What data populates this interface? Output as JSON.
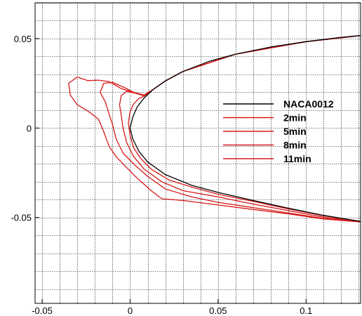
{
  "chart_data": {
    "type": "line",
    "title": "",
    "xlabel": "",
    "ylabel": "",
    "xlim": [
      -0.054,
      0.131
    ],
    "ylim": [
      -0.098,
      0.07
    ],
    "xticks": [
      -0.05,
      0,
      0.05,
      0.1
    ],
    "xtick_labels": [
      "-0.05",
      "0",
      "0.05",
      "0.1"
    ],
    "yticks": [
      -0.05,
      0,
      0.05
    ],
    "ytick_labels": [
      "-0.05",
      "0",
      "0.05"
    ],
    "grid": true,
    "grid_minor_x": 0.01,
    "grid_minor_y": 0.01,
    "legend_position": "center-right",
    "series": [
      {
        "name": "NACA0012",
        "color": "#000000",
        "points": [
          [
            0.131,
            0.0517
          ],
          [
            0.12,
            0.0507
          ],
          [
            0.1,
            0.0483
          ],
          [
            0.08,
            0.0453
          ],
          [
            0.06,
            0.0413
          ],
          [
            0.045,
            0.0373
          ],
          [
            0.03,
            0.0316
          ],
          [
            0.02,
            0.0263
          ],
          [
            0.013,
            0.0215
          ],
          [
            0.008,
            0.0168
          ],
          [
            0.004,
            0.0118
          ],
          [
            0.0015,
            0.006
          ],
          [
            0.0,
            0.0
          ],
          [
            0.0015,
            -0.006
          ],
          [
            0.005,
            -0.013
          ],
          [
            0.01,
            -0.019
          ],
          [
            0.02,
            -0.026
          ],
          [
            0.035,
            -0.032
          ],
          [
            0.05,
            -0.036
          ],
          [
            0.07,
            -0.0405
          ],
          [
            0.09,
            -0.0448
          ],
          [
            0.11,
            -0.0488
          ],
          [
            0.131,
            -0.0522
          ]
        ]
      },
      {
        "name": "2min",
        "color": "#d81818",
        "points": [
          [
            0.131,
            0.0517
          ],
          [
            0.1,
            0.0483
          ],
          [
            0.06,
            0.0413
          ],
          [
            0.03,
            0.0316
          ],
          [
            0.02,
            0.0263
          ],
          [
            0.013,
            0.0215
          ],
          [
            0.008,
            0.0178
          ],
          [
            0.005,
            0.0165
          ],
          [
            0.002,
            0.0135
          ],
          [
            0.0,
            0.009
          ],
          [
            -0.001,
            0.003
          ],
          [
            0.0,
            -0.004
          ],
          [
            0.002,
            -0.011
          ],
          [
            0.006,
            -0.017
          ],
          [
            0.012,
            -0.023
          ],
          [
            0.022,
            -0.029
          ],
          [
            0.035,
            -0.033
          ],
          [
            0.05,
            -0.037
          ],
          [
            0.07,
            -0.041
          ],
          [
            0.09,
            -0.0452
          ],
          [
            0.11,
            -0.049
          ],
          [
            0.131,
            -0.0522
          ]
        ]
      },
      {
        "name": "5min",
        "color": "#d81818",
        "points": [
          [
            0.131,
            0.0517
          ],
          [
            0.1,
            0.0483
          ],
          [
            0.06,
            0.0413
          ],
          [
            0.03,
            0.0316
          ],
          [
            0.02,
            0.0263
          ],
          [
            0.013,
            0.0215
          ],
          [
            0.008,
            0.018
          ],
          [
            0.003,
            0.0195
          ],
          [
            -0.002,
            0.0205
          ],
          [
            -0.005,
            0.0182
          ],
          [
            -0.006,
            0.013
          ],
          [
            -0.005,
            0.007
          ],
          [
            -0.004,
            0.0
          ],
          [
            -0.002,
            -0.008
          ],
          [
            0.002,
            -0.016
          ],
          [
            0.008,
            -0.023
          ],
          [
            0.018,
            -0.03
          ],
          [
            0.03,
            -0.035
          ],
          [
            0.05,
            -0.0385
          ],
          [
            0.07,
            -0.0425
          ],
          [
            0.09,
            -0.0462
          ],
          [
            0.11,
            -0.0498
          ],
          [
            0.131,
            -0.0525
          ]
        ]
      },
      {
        "name": "8min",
        "color": "#d81818",
        "points": [
          [
            0.131,
            0.0517
          ],
          [
            0.1,
            0.0483
          ],
          [
            0.06,
            0.0413
          ],
          [
            0.03,
            0.0316
          ],
          [
            0.02,
            0.0263
          ],
          [
            0.013,
            0.0215
          ],
          [
            0.008,
            0.0183
          ],
          [
            0.003,
            0.0195
          ],
          [
            -0.003,
            0.0225
          ],
          [
            -0.01,
            0.0255
          ],
          [
            -0.015,
            0.025
          ],
          [
            -0.017,
            0.02
          ],
          [
            -0.014,
            0.0145
          ],
          [
            -0.012,
            0.008
          ],
          [
            -0.01,
            0.002
          ],
          [
            -0.008,
            -0.006
          ],
          [
            -0.004,
            -0.014
          ],
          [
            0.003,
            -0.021
          ],
          [
            0.01,
            -0.027
          ],
          [
            0.02,
            -0.034
          ],
          [
            0.035,
            -0.0385
          ],
          [
            0.05,
            -0.0415
          ],
          [
            0.07,
            -0.0445
          ],
          [
            0.09,
            -0.0475
          ],
          [
            0.11,
            -0.0505
          ],
          [
            0.131,
            -0.0525
          ]
        ]
      },
      {
        "name": "11min",
        "color": "#d81818",
        "points": [
          [
            0.131,
            0.0517
          ],
          [
            0.1,
            0.0483
          ],
          [
            0.06,
            0.0413
          ],
          [
            0.03,
            0.0316
          ],
          [
            0.02,
            0.0263
          ],
          [
            0.013,
            0.0215
          ],
          [
            0.008,
            0.0185
          ],
          [
            0.002,
            0.02
          ],
          [
            -0.005,
            0.022
          ],
          [
            -0.012,
            0.026
          ],
          [
            -0.018,
            0.0268
          ],
          [
            -0.024,
            0.0265
          ],
          [
            -0.03,
            0.0285
          ],
          [
            -0.035,
            0.025
          ],
          [
            -0.034,
            0.0185
          ],
          [
            -0.03,
            0.013
          ],
          [
            -0.024,
            0.0095
          ],
          [
            -0.018,
            0.005
          ],
          [
            -0.015,
            -0.002
          ],
          [
            -0.012,
            -0.01
          ],
          [
            -0.008,
            -0.016
          ],
          [
            -0.002,
            -0.022
          ],
          [
            0.004,
            -0.028
          ],
          [
            0.012,
            -0.035
          ],
          [
            0.018,
            -0.0395
          ],
          [
            0.03,
            -0.0405
          ],
          [
            0.05,
            -0.043
          ],
          [
            0.07,
            -0.0455
          ],
          [
            0.09,
            -0.048
          ],
          [
            0.11,
            -0.0508
          ],
          [
            0.131,
            -0.0525
          ]
        ]
      }
    ]
  }
}
